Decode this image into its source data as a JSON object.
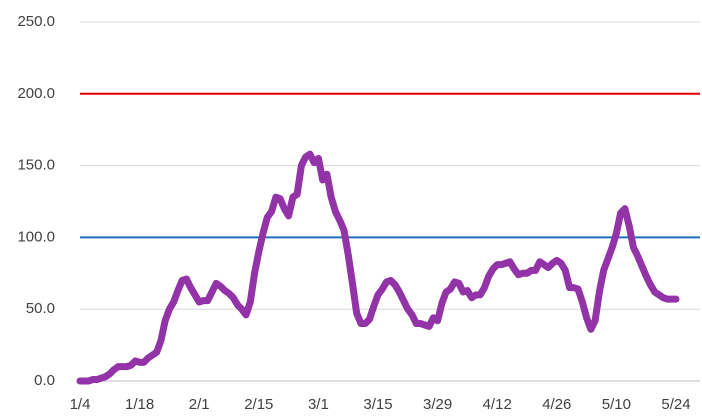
{
  "chart_data": {
    "type": "line",
    "categories": [
      "1/4",
      null,
      null,
      null,
      null,
      null,
      null,
      null,
      null,
      null,
      null,
      null,
      null,
      null,
      "1/18",
      null,
      null,
      null,
      null,
      null,
      null,
      null,
      null,
      null,
      null,
      null,
      null,
      null,
      "2/1",
      null,
      null,
      null,
      null,
      null,
      null,
      null,
      null,
      null,
      null,
      null,
      null,
      null,
      "2/15",
      null,
      null,
      null,
      null,
      null,
      null,
      null,
      null,
      null,
      null,
      null,
      null,
      null,
      "3/1",
      null,
      null,
      null,
      null,
      null,
      null,
      null,
      null,
      null,
      null,
      null,
      null,
      null,
      "3/15",
      null,
      null,
      null,
      null,
      null,
      null,
      null,
      null,
      null,
      null,
      null,
      null,
      null,
      "3/29",
      null,
      null,
      null,
      null,
      null,
      null,
      null,
      null,
      null,
      null,
      null,
      null,
      null,
      "4/12",
      null,
      null,
      null,
      null,
      null,
      null,
      null,
      null,
      null,
      null,
      null,
      null,
      null,
      "4/26",
      null,
      null,
      null,
      null,
      null,
      null,
      null,
      null,
      null,
      null,
      null,
      null,
      null,
      "5/10",
      null,
      null,
      null,
      null,
      null,
      null,
      null,
      null,
      null,
      null,
      null,
      null,
      null,
      "5/24"
    ],
    "series": [
      {
        "color": "#9333a8",
        "values": [
          0,
          0,
          0,
          1,
          1,
          2,
          3,
          5,
          8,
          10,
          10,
          10,
          11,
          14,
          13,
          13,
          16,
          18,
          20,
          28,
          42,
          50,
          55,
          63,
          70,
          71,
          65,
          60,
          55,
          56,
          56,
          62,
          68,
          66,
          63,
          61,
          58,
          53,
          50,
          46,
          55,
          75,
          90,
          103,
          114,
          118,
          128,
          127,
          120,
          115,
          128,
          130,
          150,
          156,
          158,
          152,
          155,
          140,
          144,
          128,
          118,
          112,
          105,
          88,
          68,
          47,
          40,
          40,
          43,
          52,
          60,
          64,
          69,
          70,
          67,
          62,
          56,
          50,
          46,
          40,
          40,
          39,
          38,
          44,
          42,
          54,
          62,
          64,
          69,
          68,
          62,
          63,
          58,
          60,
          60,
          65,
          73,
          78,
          81,
          81,
          82,
          83,
          78,
          74,
          75,
          75,
          77,
          77,
          83,
          81,
          79,
          82,
          84,
          82,
          77,
          65,
          65,
          64,
          55,
          44,
          36,
          42,
          62,
          77,
          85,
          93,
          103,
          117,
          120,
          108,
          93,
          87,
          80,
          73,
          67,
          62,
          60,
          58,
          57,
          57,
          57
        ]
      }
    ],
    "reference_lines": [
      {
        "value": 200,
        "color": "#e00000"
      },
      {
        "value": 100,
        "color": "#1f6fc0"
      }
    ],
    "ylim": [
      0,
      250
    ],
    "yticks": [
      {
        "value": 0,
        "label": "0.0"
      },
      {
        "value": 50,
        "label": "50.0"
      },
      {
        "value": 100,
        "label": "100.0"
      },
      {
        "value": 150,
        "label": "150.0"
      },
      {
        "value": 200,
        "label": "200.0"
      },
      {
        "value": 250,
        "label": "250.0"
      }
    ],
    "grid": true
  }
}
